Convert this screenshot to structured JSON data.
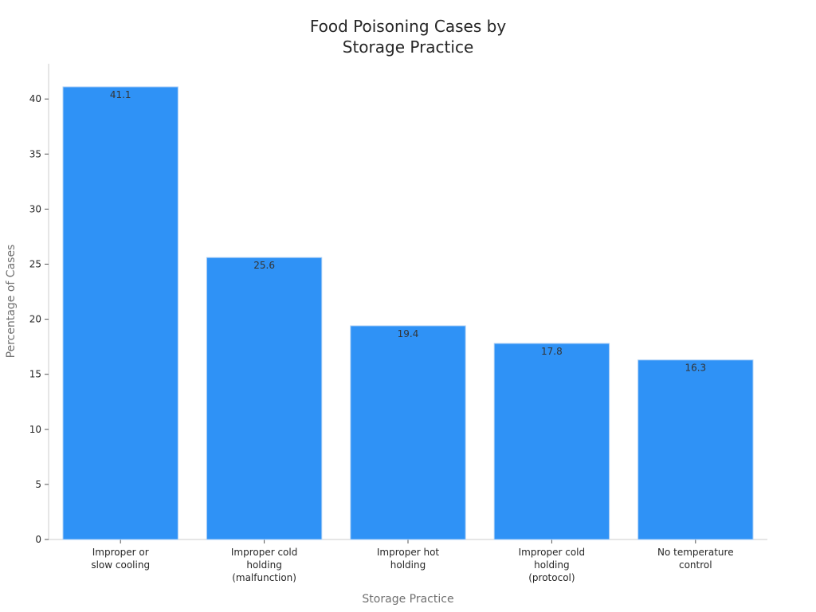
{
  "chart_data": {
    "type": "bar",
    "title": "Food Poisoning Cases by\nStorage Practice",
    "xlabel": "Storage Practice",
    "ylabel": "Percentage of Cases",
    "categories": [
      "Improper or\nslow cooling",
      "Improper cold\nholding\n(malfunction)",
      "Improper hot\nholding",
      "Improper cold\nholding\n(protocol)",
      "No temperature\ncontrol"
    ],
    "values": [
      41.1,
      25.6,
      19.4,
      17.8,
      16.3
    ],
    "data_labels": [
      "41.1",
      "25.6",
      "19.4",
      "17.8",
      "16.3"
    ],
    "yticks": [
      0,
      5,
      10,
      15,
      20,
      25,
      30,
      35,
      40
    ],
    "ylim": [
      0,
      43.2
    ],
    "grid": false,
    "legend": "none",
    "colors": {
      "bar": "#2f92f6",
      "bar_edge": "#a8cdf5",
      "axis": "#cccccc",
      "text": "#262626"
    }
  }
}
